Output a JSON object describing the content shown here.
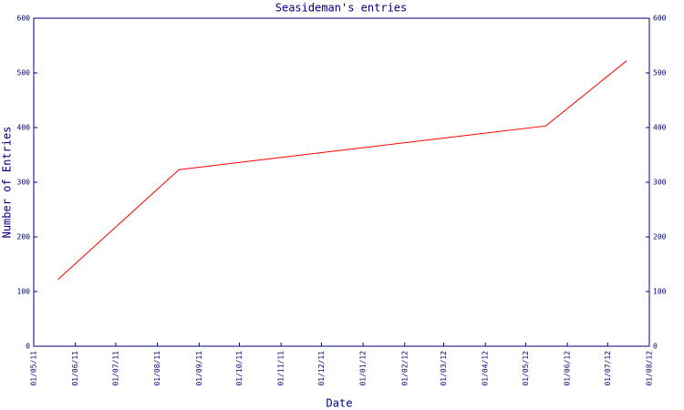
{
  "chart_data": {
    "type": "line",
    "title": "Seasideman's entries",
    "x_label": "Date",
    "y_label": "Number of Entries",
    "x": [
      "2011-05-19",
      "2011-08-17",
      "2012-05-16",
      "2012-07-15"
    ],
    "series": [
      {
        "name": "Entries",
        "color": "#ff0000",
        "values": [
          122,
          323,
          403,
          522
        ]
      }
    ],
    "xlim": [
      "2011-05-01",
      "2012-08-01"
    ],
    "xticks": [
      {
        "value": "2011-05-01",
        "label": "01/05/11"
      },
      {
        "value": "2011-06-01",
        "label": "01/06/11"
      },
      {
        "value": "2011-07-01",
        "label": "01/07/11"
      },
      {
        "value": "2011-08-01",
        "label": "01/08/11"
      },
      {
        "value": "2011-09-01",
        "label": "01/09/11"
      },
      {
        "value": "2011-10-01",
        "label": "01/10/11"
      },
      {
        "value": "2011-11-01",
        "label": "01/11/11"
      },
      {
        "value": "2011-12-01",
        "label": "01/12/11"
      },
      {
        "value": "2012-01-01",
        "label": "01/01/12"
      },
      {
        "value": "2012-02-01",
        "label": "01/02/12"
      },
      {
        "value": "2012-03-01",
        "label": "01/03/12"
      },
      {
        "value": "2012-04-01",
        "label": "01/04/12"
      },
      {
        "value": "2012-05-01",
        "label": "01/05/12"
      },
      {
        "value": "2012-06-01",
        "label": "01/06/12"
      },
      {
        "value": "2012-07-01",
        "label": "01/07/12"
      },
      {
        "value": "2012-08-01",
        "label": "01/08/12"
      }
    ],
    "ylim": [
      0,
      600
    ],
    "yticks": [
      0,
      100,
      200,
      300,
      400,
      500,
      600
    ],
    "y2lim": [
      0,
      600
    ],
    "y2ticks": [
      0,
      100,
      200,
      300,
      400,
      500,
      600
    ]
  }
}
